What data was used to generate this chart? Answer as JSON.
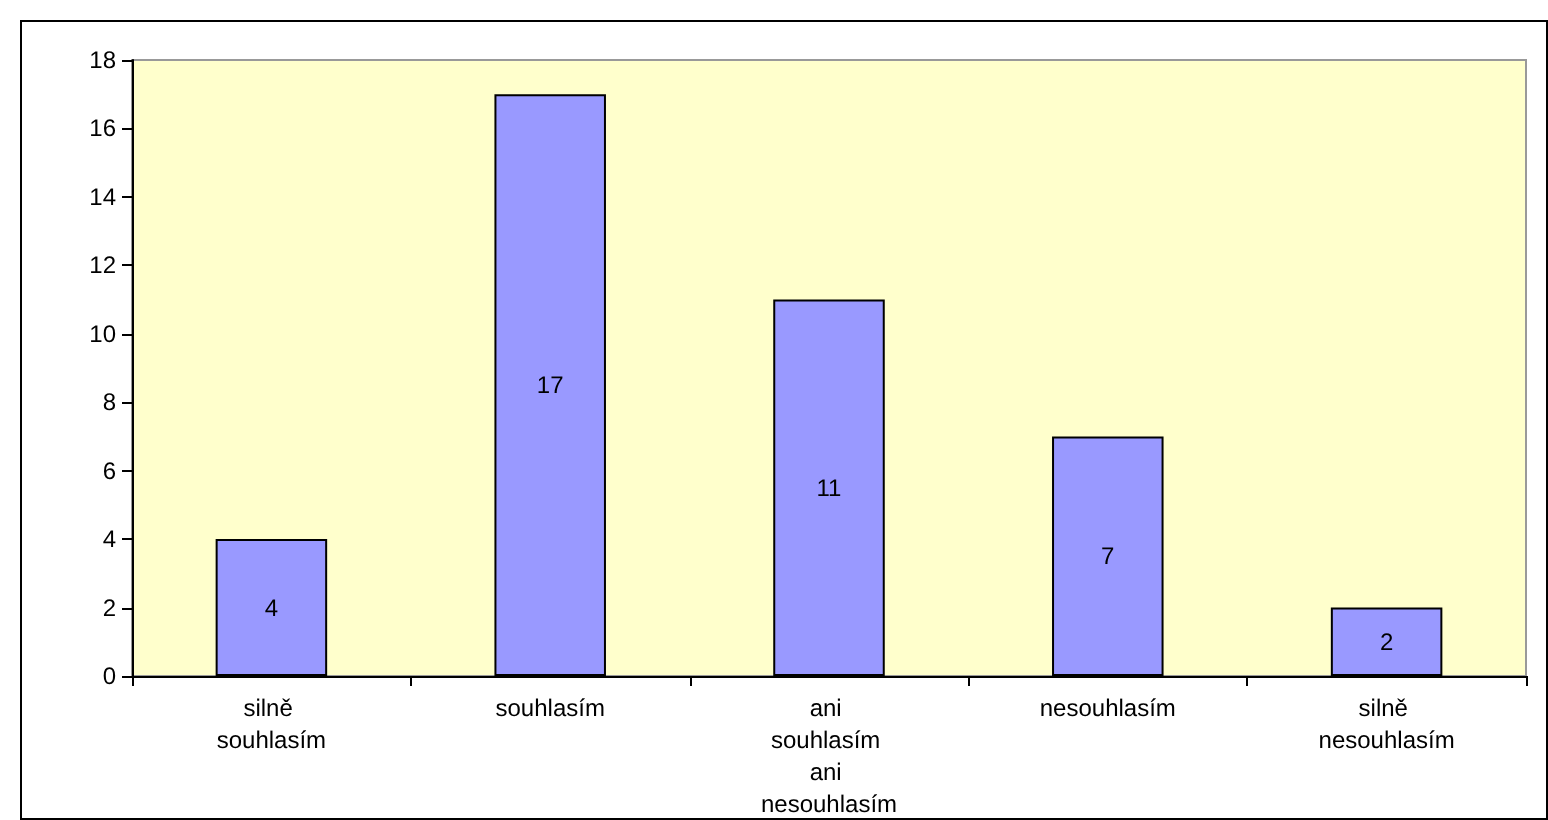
{
  "chart_data": {
    "type": "bar",
    "categories": [
      "silně souhlasím",
      "souhlasím",
      "ani souhlasím ani nesouhlasím",
      "nesouhlasím",
      "silně nesouhlasím"
    ],
    "values": [
      4,
      17,
      11,
      7,
      2
    ],
    "color": "#9999ff",
    "ylim": [
      0,
      18
    ],
    "yticks": [
      0,
      2,
      4,
      6,
      8,
      10,
      12,
      14,
      16,
      18
    ],
    "grid": false,
    "data_labels": true
  }
}
